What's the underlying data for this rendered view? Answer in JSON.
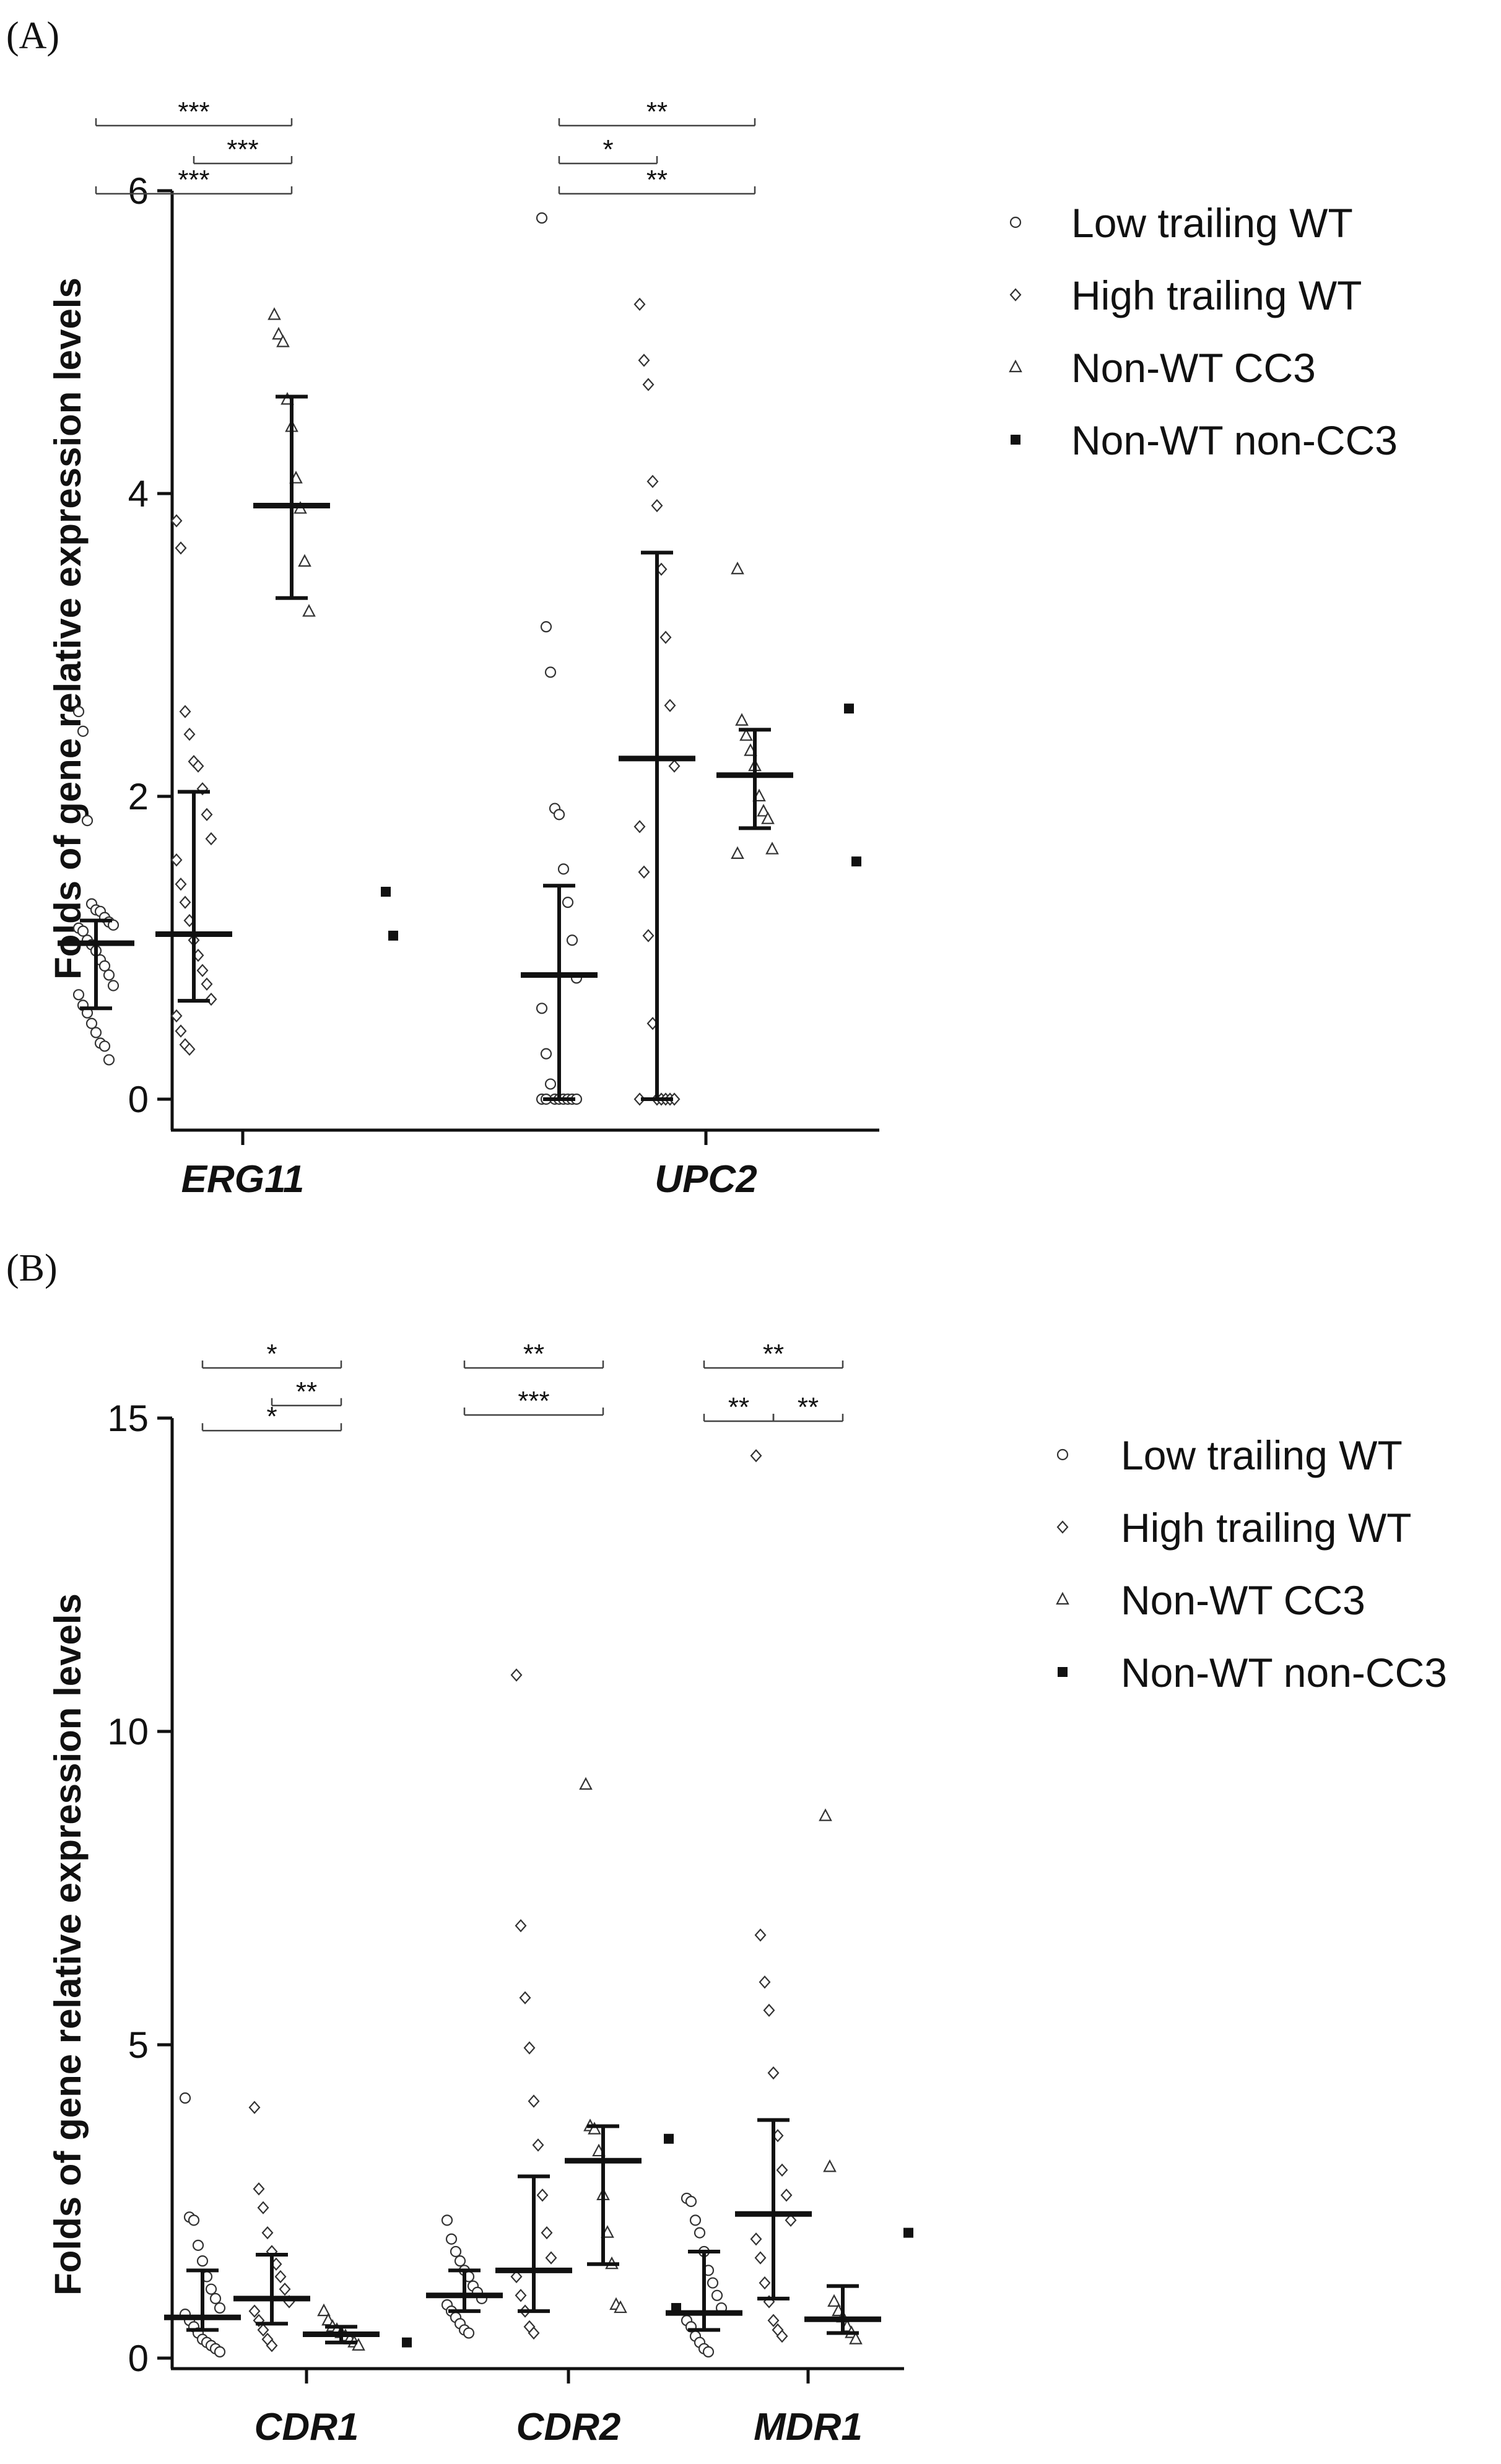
{
  "chart_data": [
    {
      "type": "scatter",
      "panel_label": "(A)",
      "ylabel": "Folds of gene relative expression levels",
      "ylim": [
        0,
        6
      ],
      "yticks": [
        0,
        2,
        4,
        6
      ],
      "categories": [
        "ERG11",
        "UPC2"
      ],
      "legend": {
        "position": "top-right",
        "entries": [
          {
            "label": "Low trailing WT",
            "marker": "circle"
          },
          {
            "label": "High trailing WT",
            "marker": "diamond"
          },
          {
            "label": "Non-WT CC3",
            "marker": "triangle"
          },
          {
            "label": "Non-WT non-CC3",
            "marker": "square"
          }
        ]
      },
      "series": [
        {
          "name": "Low trailing WT",
          "marker": "circle",
          "points": [
            {
              "category": "ERG11",
              "values": [
                2.56,
                2.43,
                1.84,
                1.29,
                1.25,
                1.24,
                1.2,
                1.17,
                1.15,
                1.13,
                1.11,
                1.05,
                1.02,
                0.98,
                0.92,
                0.88,
                0.82,
                0.75,
                0.69,
                0.62,
                0.57,
                0.5,
                0.44,
                0.37,
                0.35,
                0.26
              ]
            },
            {
              "category": "UPC2",
              "values": [
                5.82,
                3.12,
                2.82,
                1.92,
                1.88,
                1.52,
                1.3,
                1.05,
                0.8,
                0.6,
                0.3,
                0.1,
                0,
                0,
                0,
                0,
                0,
                0,
                0,
                0
              ]
            }
          ],
          "summary": [
            {
              "category": "ERG11",
              "mean": 1.03,
              "lower": 0.6,
              "upper": 1.18
            },
            {
              "category": "UPC2",
              "mean": 0.82,
              "lower": 0,
              "upper": 1.41
            }
          ]
        },
        {
          "name": "High trailing WT",
          "marker": "diamond",
          "points": [
            {
              "category": "ERG11",
              "values": [
                3.82,
                3.64,
                2.56,
                2.41,
                2.23,
                2.2,
                2.05,
                1.88,
                1.72,
                1.58,
                1.42,
                1.3,
                1.18,
                1.05,
                0.95,
                0.85,
                0.76,
                0.66,
                0.55,
                0.45,
                0.36,
                0.33
              ]
            },
            {
              "category": "UPC2",
              "values": [
                5.25,
                4.88,
                4.72,
                4.08,
                3.92,
                3.5,
                3.05,
                2.6,
                2.2,
                1.8,
                1.5,
                1.08,
                0.5,
                0,
                0,
                0,
                0,
                0,
                0
              ]
            }
          ],
          "summary": [
            {
              "category": "ERG11",
              "mean": 1.09,
              "lower": 0.65,
              "upper": 2.03
            },
            {
              "category": "UPC2",
              "mean": 2.25,
              "lower": 0,
              "upper": 3.61
            }
          ]
        },
        {
          "name": "Non-WT CC3",
          "marker": "triangle",
          "points": [
            {
              "category": "ERG11",
              "values": [
                5.18,
                5.05,
                5.0,
                4.62,
                4.44,
                4.1,
                3.9,
                3.55,
                3.22
              ]
            },
            {
              "category": "UPC2",
              "values": [
                3.5,
                2.5,
                2.4,
                2.3,
                2.2,
                2.0,
                1.9,
                1.85,
                1.65,
                1.62
              ]
            }
          ],
          "summary": [
            {
              "category": "ERG11",
              "mean": 3.92,
              "lower": 3.31,
              "upper": 4.64
            },
            {
              "category": "UPC2",
              "mean": 2.14,
              "lower": 1.79,
              "upper": 2.44
            }
          ]
        },
        {
          "name": "Non-WT non-CC3",
          "marker": "square",
          "points": [
            {
              "category": "ERG11",
              "values": [
                1.37,
                1.08
              ]
            },
            {
              "category": "UPC2",
              "values": [
                2.58,
                1.57
              ]
            }
          ]
        }
      ],
      "significance": [
        {
          "category": "ERG11",
          "from": 0,
          "to": 2,
          "label": "***",
          "y": 6.43
        },
        {
          "category": "ERG11",
          "from": 1,
          "to": 2,
          "label": "***",
          "y": 6.18
        },
        {
          "category": "ERG11",
          "from": 0,
          "to": 2,
          "label": "***",
          "y": 5.98
        },
        {
          "category": "UPC2",
          "from": 0,
          "to": 2,
          "label": "**",
          "y": 6.43
        },
        {
          "category": "UPC2",
          "from": 0,
          "to": 1,
          "label": "*",
          "y": 6.18
        },
        {
          "category": "UPC2",
          "from": 0,
          "to": 2,
          "label": "**",
          "y": 5.98
        }
      ]
    },
    {
      "type": "scatter",
      "panel_label": "(B)",
      "ylabel": "Folds of gene relative expression levels",
      "ylim": [
        0,
        15
      ],
      "yticks": [
        0,
        5,
        10,
        15
      ],
      "categories": [
        "CDR1",
        "CDR2",
        "MDR1"
      ],
      "legend": {
        "position": "top-right",
        "entries": [
          {
            "label": "Low trailing WT",
            "marker": "circle"
          },
          {
            "label": "High trailing WT",
            "marker": "diamond"
          },
          {
            "label": "Non-WT CC3",
            "marker": "triangle"
          },
          {
            "label": "Non-WT non-CC3",
            "marker": "square"
          }
        ]
      },
      "series": [
        {
          "name": "Low trailing WT",
          "marker": "circle",
          "points": [
            {
              "category": "CDR1",
              "values": [
                4.15,
                2.25,
                2.2,
                1.8,
                1.55,
                1.3,
                1.1,
                0.95,
                0.8,
                0.7,
                0.6,
                0.5,
                0.4,
                0.3,
                0.25,
                0.2,
                0.15,
                0.1
              ]
            },
            {
              "category": "CDR2",
              "values": [
                2.2,
                1.9,
                1.7,
                1.55,
                1.4,
                1.3,
                1.15,
                1.05,
                0.95,
                0.85,
                0.75,
                0.65,
                0.55,
                0.45,
                0.4
              ]
            },
            {
              "category": "MDR1",
              "values": [
                2.55,
                2.5,
                2.2,
                2.0,
                1.7,
                1.4,
                1.2,
                1.0,
                0.8,
                0.6,
                0.5,
                0.35,
                0.25,
                0.15,
                0.1
              ]
            }
          ],
          "summary": [
            {
              "category": "CDR1",
              "mean": 0.65,
              "lower": 0.45,
              "upper": 1.4
            },
            {
              "category": "CDR2",
              "mean": 1.0,
              "lower": 0.75,
              "upper": 1.4
            },
            {
              "category": "MDR1",
              "mean": 0.72,
              "lower": 0.45,
              "upper": 1.7
            }
          ]
        },
        {
          "name": "High trailing WT",
          "marker": "diamond",
          "points": [
            {
              "category": "CDR1",
              "values": [
                4.0,
                2.7,
                2.4,
                2.0,
                1.7,
                1.5,
                1.3,
                1.1,
                0.9,
                0.75,
                0.6,
                0.45,
                0.3,
                0.2
              ]
            },
            {
              "category": "CDR2",
              "values": [
                10.9,
                6.9,
                5.75,
                4.95,
                4.1,
                3.4,
                2.6,
                2.0,
                1.6,
                1.3,
                1.0,
                0.75,
                0.5,
                0.4
              ]
            },
            {
              "category": "MDR1",
              "values": [
                14.4,
                6.75,
                6.0,
                5.55,
                4.55,
                3.55,
                3.0,
                2.6,
                2.2,
                1.9,
                1.6,
                1.2,
                0.9,
                0.6,
                0.45,
                0.35
              ]
            }
          ],
          "summary": [
            {
              "category": "CDR1",
              "mean": 0.95,
              "lower": 0.55,
              "upper": 1.65
            },
            {
              "category": "CDR2",
              "mean": 1.4,
              "lower": 0.75,
              "upper": 2.9
            },
            {
              "category": "MDR1",
              "mean": 2.3,
              "lower": 0.95,
              "upper": 3.8
            }
          ]
        },
        {
          "name": "Non-WT CC3",
          "marker": "triangle",
          "points": [
            {
              "category": "CDR1",
              "values": [
                0.75,
                0.6,
                0.5,
                0.45,
                0.4,
                0.35,
                0.3,
                0.25,
                0.2
              ]
            },
            {
              "category": "CDR2",
              "values": [
                9.15,
                3.7,
                3.65,
                3.3,
                2.6,
                2.0,
                1.5,
                0.85,
                0.8
              ]
            },
            {
              "category": "MDR1",
              "values": [
                8.65,
                3.05,
                0.9,
                0.75,
                0.65,
                0.5,
                0.4,
                0.3
              ]
            }
          ],
          "summary": [
            {
              "category": "CDR1",
              "mean": 0.38,
              "lower": 0.25,
              "upper": 0.5
            },
            {
              "category": "CDR2",
              "mean": 3.15,
              "lower": 1.5,
              "upper": 3.7
            },
            {
              "category": "MDR1",
              "mean": 0.62,
              "lower": 0.4,
              "upper": 1.15
            }
          ]
        },
        {
          "name": "Non-WT non-CC3",
          "marker": "square",
          "points": [
            {
              "category": "CDR1",
              "values": [
                0.25
              ]
            },
            {
              "category": "CDR2",
              "values": [
                3.5,
                0.8
              ]
            },
            {
              "category": "MDR1",
              "values": [
                2.0
              ]
            }
          ]
        }
      ],
      "significance": [
        {
          "category": "CDR1",
          "from": 0,
          "to": 2,
          "label": "*",
          "y": 15.8
        },
        {
          "category": "CDR1",
          "from": 1,
          "to": 2,
          "label": "**",
          "y": 15.2
        },
        {
          "category": "CDR1",
          "from": 0,
          "to": 2,
          "label": "*",
          "y": 14.8
        },
        {
          "category": "CDR2",
          "from": 0,
          "to": 2,
          "label": "**",
          "y": 15.8
        },
        {
          "category": "CDR2",
          "from": 0,
          "to": 2,
          "label": "***",
          "y": 15.05
        },
        {
          "category": "MDR1",
          "from": 0,
          "to": 2,
          "label": "**",
          "y": 15.8
        },
        {
          "category": "MDR1",
          "from": 0,
          "to": 1,
          "label": "**",
          "y": 14.95
        },
        {
          "category": "MDR1",
          "from": 1,
          "to": 2,
          "label": "**",
          "y": 14.95
        }
      ]
    }
  ]
}
